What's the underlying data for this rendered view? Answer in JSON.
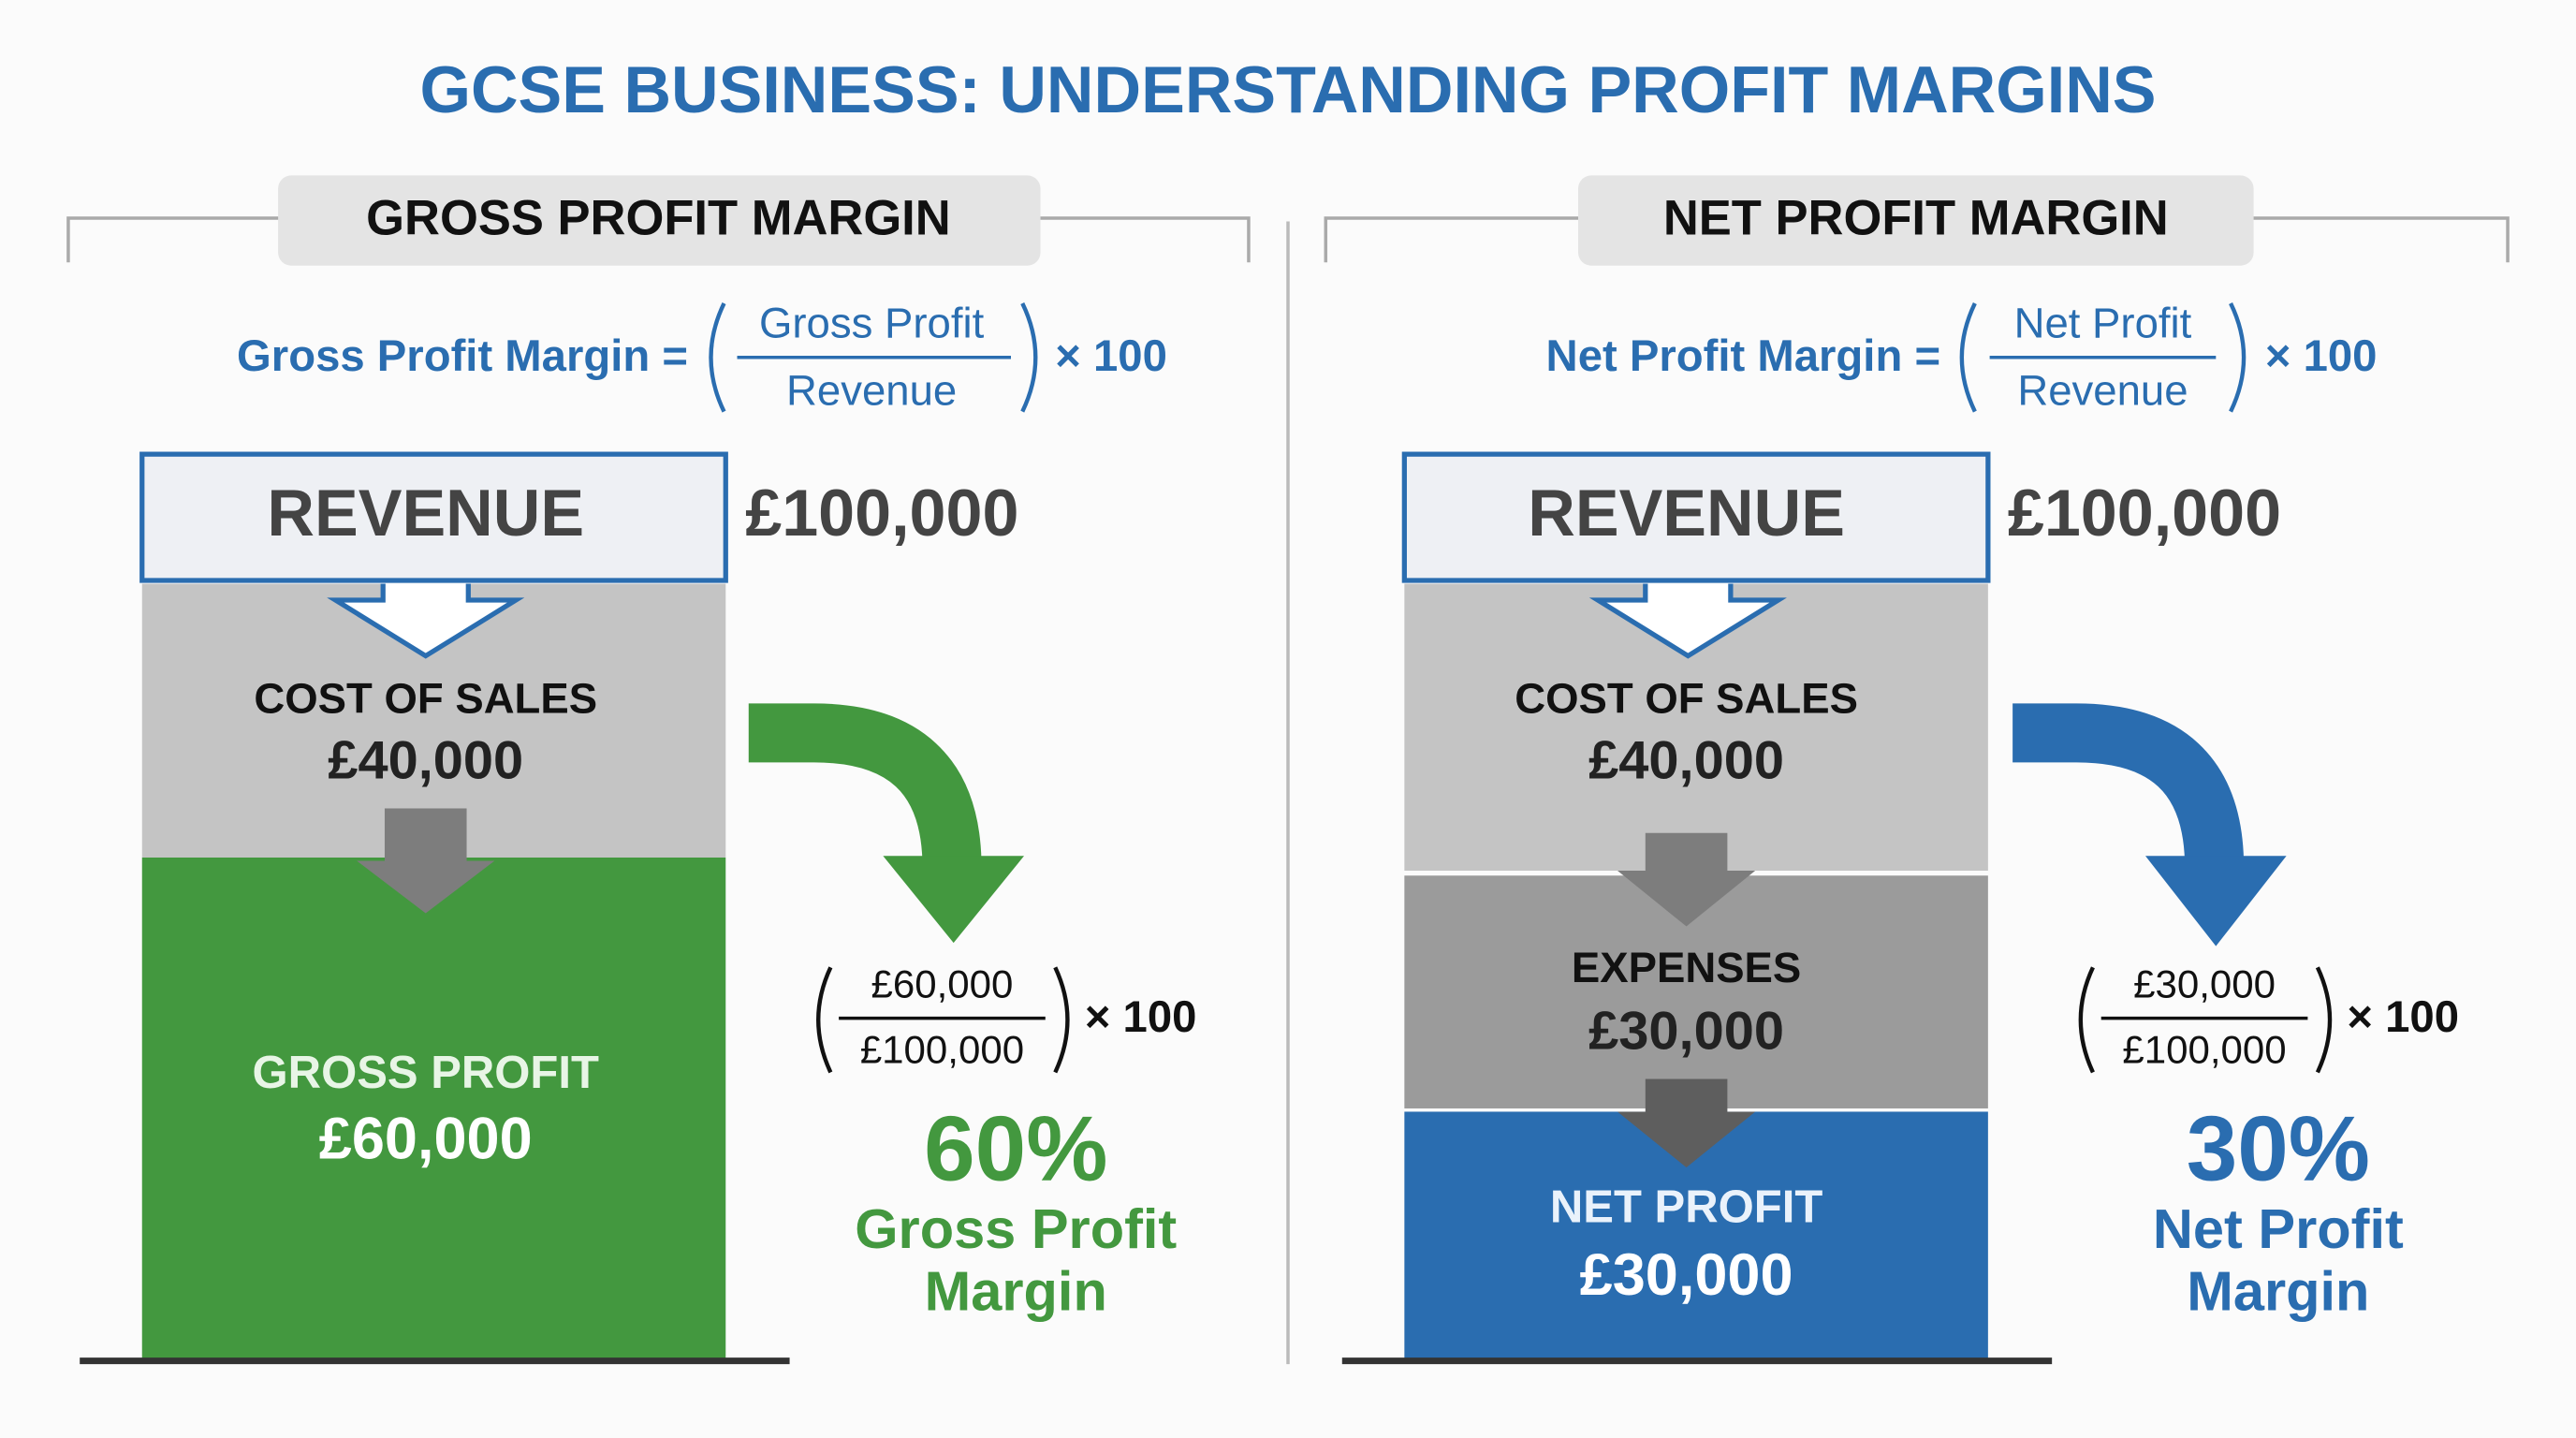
{
  "title": "GCSE BUSINESS: UNDERSTANDING PROFIT MARGINS",
  "panels": [
    {
      "heading": "GROSS PROFIT MARGIN",
      "formula": {
        "lhs": "Gross Profit Margin =",
        "numerator": "Gross Profit",
        "denominator": "Revenue",
        "multiplier": "× 100"
      },
      "revenue": {
        "label": "REVENUE",
        "amount": "£100,000"
      },
      "blocks": [
        {
          "label": "COST OF SALES",
          "amount": "£40,000"
        },
        {
          "label": "GROSS PROFIT",
          "amount": "£60,000"
        }
      ],
      "calculation": {
        "numerator": "£60,000",
        "denominator": "£100,000",
        "multiplier": "× 100"
      },
      "result": {
        "value": "60%",
        "label_lines": [
          "Gross Profit",
          "Margin"
        ]
      }
    },
    {
      "heading": "NET PROFIT MARGIN",
      "formula": {
        "lhs": "Net Profit Margin =",
        "numerator": "Net Profit",
        "denominator": "Revenue",
        "multiplier": "× 100"
      },
      "revenue": {
        "label": "REVENUE",
        "amount": "£100,000"
      },
      "blocks": [
        {
          "label": "COST OF SALES",
          "amount": "£40,000"
        },
        {
          "label": "EXPENSES",
          "amount": "£30,000"
        },
        {
          "label": "NET PROFIT",
          "amount": "£30,000"
        }
      ],
      "calculation": {
        "numerator": "£30,000",
        "denominator": "£100,000",
        "multiplier": "× 100"
      },
      "result": {
        "value": "30%",
        "label_lines": [
          "Net Profit",
          "Margin"
        ]
      }
    }
  ]
}
